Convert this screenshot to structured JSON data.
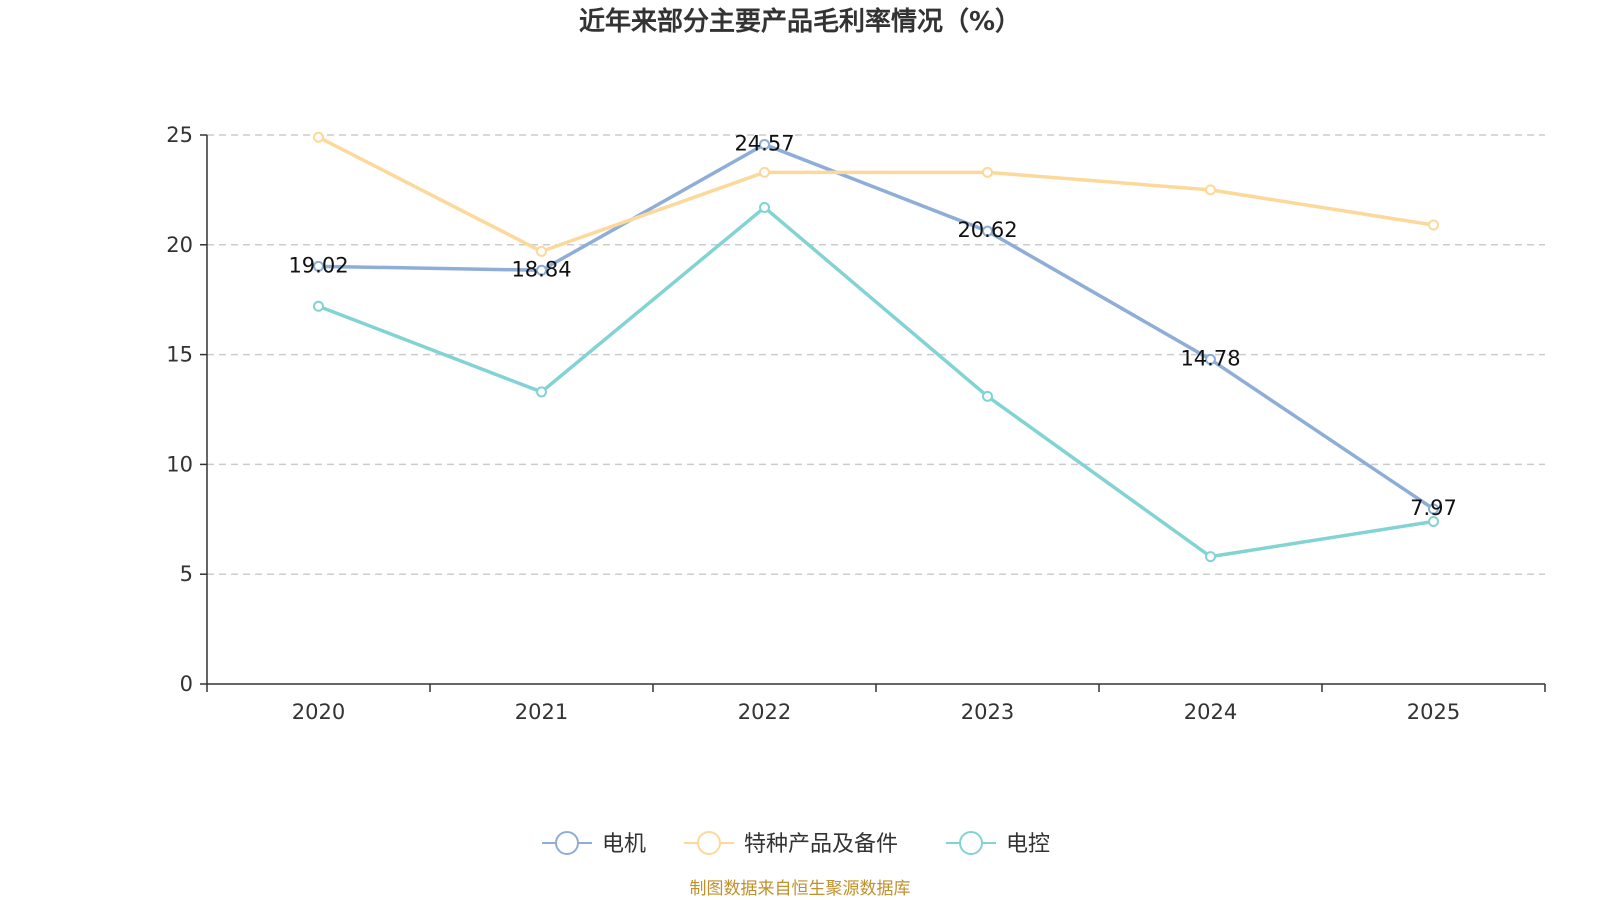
{
  "chart_data": {
    "type": "line",
    "title": "近年来部分主要产品毛利率情况（%）",
    "categories": [
      "2020",
      "2021",
      "2022",
      "2023",
      "2024",
      "2025"
    ],
    "ylim": [
      0,
      25
    ],
    "yticks": [
      0,
      5,
      10,
      15,
      20,
      25
    ],
    "grid": true,
    "legend_position": "bottom-center",
    "series": [
      {
        "name": "电机",
        "color": "#8eaed8",
        "values": [
          19.02,
          18.84,
          24.57,
          20.62,
          14.78,
          7.97
        ],
        "labels": [
          "19.02",
          "18.84",
          "24.57",
          "20.62",
          "14.78",
          "7.97"
        ]
      },
      {
        "name": "特种产品及备件",
        "color": "#fcd99a",
        "values": [
          24.9,
          19.7,
          23.3,
          23.3,
          22.5,
          20.9
        ]
      },
      {
        "name": "电控",
        "color": "#82d3d4",
        "values": [
          17.2,
          13.3,
          21.7,
          13.1,
          5.8,
          7.4
        ]
      }
    ],
    "source": "制图数据来自恒生聚源数据库"
  }
}
